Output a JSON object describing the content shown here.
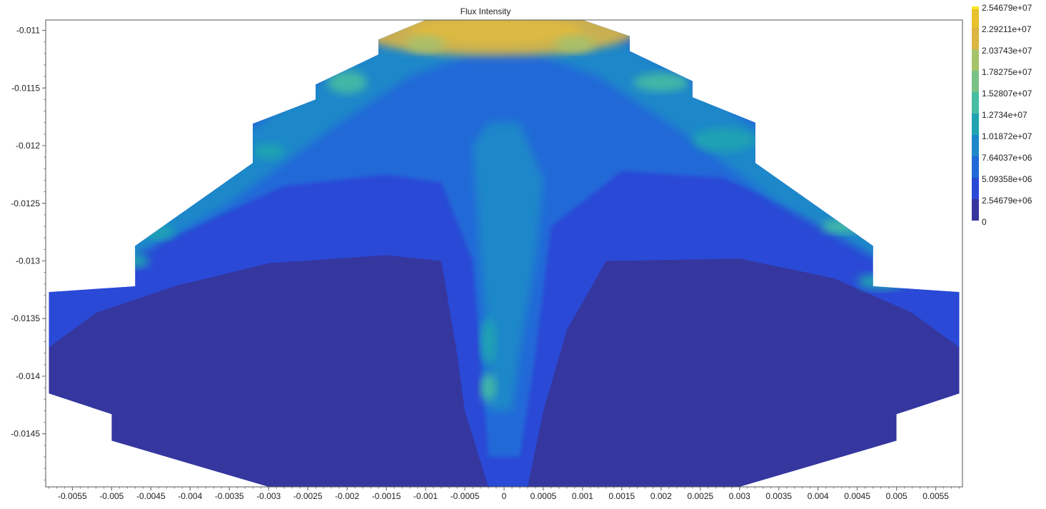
{
  "chart_data": {
    "type": "heatmap",
    "title": "Flux Intensity",
    "xlabel": "",
    "ylabel": "",
    "xlim": [
      -0.00584,
      0.00584
    ],
    "ylim": [
      -0.01496,
      -0.01091
    ],
    "x_ticks": [
      "-0.0055",
      "-0.005",
      "-0.0045",
      "-0.004",
      "-0.0035",
      "-0.003",
      "-0.0025",
      "-0.002",
      "-0.0015",
      "-0.001",
      "-0.0005",
      "0",
      "0.0005",
      "0.001",
      "0.0015",
      "0.002",
      "0.0025",
      "0.003",
      "0.0035",
      "0.004",
      "0.0045",
      "0.005",
      "0.0055"
    ],
    "x_tick_values": [
      -0.0055,
      -0.005,
      -0.0045,
      -0.004,
      -0.0035,
      -0.003,
      -0.0025,
      -0.002,
      -0.0015,
      -0.001,
      -0.0005,
      0,
      0.0005,
      0.001,
      0.0015,
      0.002,
      0.0025,
      0.003,
      0.0035,
      0.004,
      0.0045,
      0.005,
      0.0055
    ],
    "y_ticks": [
      "-0.011",
      "-0.0115",
      "-0.012",
      "-0.0125",
      "-0.013",
      "-0.0135",
      "-0.014",
      "-0.0145"
    ],
    "y_tick_values": [
      -0.011,
      -0.0115,
      -0.012,
      -0.0125,
      -0.013,
      -0.0135,
      -0.014,
      -0.0145
    ],
    "grid": false,
    "colorbar": {
      "position": "right",
      "labels": [
        "2.54679e+07",
        "2.29211e+07",
        "2.03743e+07",
        "1.78275e+07",
        "1.52807e+07",
        "1.2734e+07",
        "1.01872e+07",
        "7.64037e+06",
        "5.09358e+06",
        "2.54679e+06",
        "0"
      ],
      "values": [
        25467900,
        22921100,
        20374300,
        17827500,
        15280700,
        12734000,
        10187200,
        7640370,
        5093580,
        2546790,
        0
      ],
      "colors": [
        "#f9e721",
        "#e8c22e",
        "#dcb643",
        "#a6c26b",
        "#7ac186",
        "#47bda2",
        "#20a5b0",
        "#1d87c9",
        "#2169d8",
        "#2a49d6",
        "#35379f"
      ]
    },
    "fan": {
      "outline": [
        [
          -0.0058,
          -0.01327
        ],
        [
          -0.0047,
          -0.01322
        ],
        [
          -0.0047,
          -0.01287
        ],
        [
          -0.0032,
          -0.01215
        ],
        [
          -0.0032,
          -0.01181
        ],
        [
          -0.0024,
          -0.0116
        ],
        [
          -0.0024,
          -0.01147
        ],
        [
          -0.0016,
          -0.01121
        ],
        [
          -0.0016,
          -0.01108
        ],
        [
          -0.001,
          -0.01091
        ],
        [
          0.001,
          -0.01091
        ],
        [
          0.0016,
          -0.01105
        ],
        [
          0.0016,
          -0.01118
        ],
        [
          0.0024,
          -0.01144
        ],
        [
          0.0024,
          -0.01158
        ],
        [
          0.0032,
          -0.0118
        ],
        [
          0.0032,
          -0.01215
        ],
        [
          0.0047,
          -0.01287
        ],
        [
          0.0047,
          -0.01322
        ],
        [
          0.0058,
          -0.01327
        ],
        [
          0.0058,
          -0.01415
        ],
        [
          0.005,
          -0.01433
        ],
        [
          0.005,
          -0.01456
        ],
        [
          0.003,
          -0.01496
        ],
        [
          -0.003,
          -0.01496
        ],
        [
          -0.005,
          -0.01456
        ],
        [
          -0.005,
          -0.01433
        ],
        [
          -0.0058,
          -0.01415
        ]
      ],
      "ridge_peak": 25467900,
      "ridge_edge": 2546790
    }
  }
}
